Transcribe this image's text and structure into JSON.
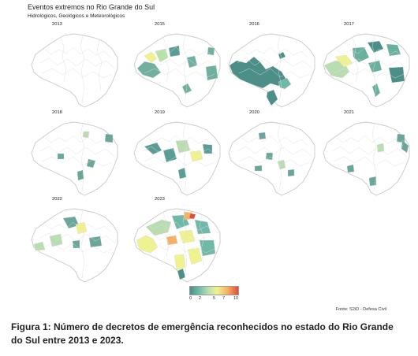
{
  "figure": {
    "title": "Eventos extremos no Rio Grande do Sul",
    "subtitle": "Hidrológicos, Geológicos e Meteorológicos",
    "source": "Fonte: S2iD - Defesa Civil",
    "caption": "Figura 1: Número de decretos de emergência reconhecidos no estado do Rio Grande do Sul entre 2013 e 2023."
  },
  "legend": {
    "ticks": [
      "0",
      "2",
      "5",
      "7",
      "10"
    ],
    "colors": [
      "#4b8f88",
      "#70b9a8",
      "#b9ddb1",
      "#eef28f",
      "#f4b164",
      "#e24c3a"
    ]
  },
  "panels": [
    {
      "year": "2013",
      "fill": []
    },
    {
      "year": "2015",
      "fill": [
        "#6fb0a0",
        "#b7e1a5",
        "#f0f18b",
        "#5a9d94"
      ]
    },
    {
      "year": "2016",
      "fill": [
        "#4b8f88",
        "#70b9a8",
        "#4b8f88"
      ]
    },
    {
      "year": "2017",
      "fill": [
        "#69b09f",
        "#b9ddb1",
        "#eef28f",
        "#4b8f88"
      ]
    },
    {
      "year": "2018",
      "fill": [
        "#6aa69a",
        "#b9ddb1"
      ]
    },
    {
      "year": "2019",
      "fill": [
        "#5a9d94",
        "#b9ddb1",
        "#eef28f"
      ]
    },
    {
      "year": "2020",
      "fill": [
        "#6aa69a",
        "#b9ddb1"
      ]
    },
    {
      "year": "2021",
      "fill": [
        "#6aa69a",
        "#b9ddb1"
      ]
    },
    {
      "year": "2022",
      "fill": [
        "#6aa69a",
        "#b9ddb1",
        "#f0f18b"
      ]
    },
    {
      "year": "2023",
      "fill": [
        "#b9ddb1",
        "#eef28f",
        "#f4b164",
        "#70b9a8",
        "#e24c3a"
      ]
    }
  ]
}
